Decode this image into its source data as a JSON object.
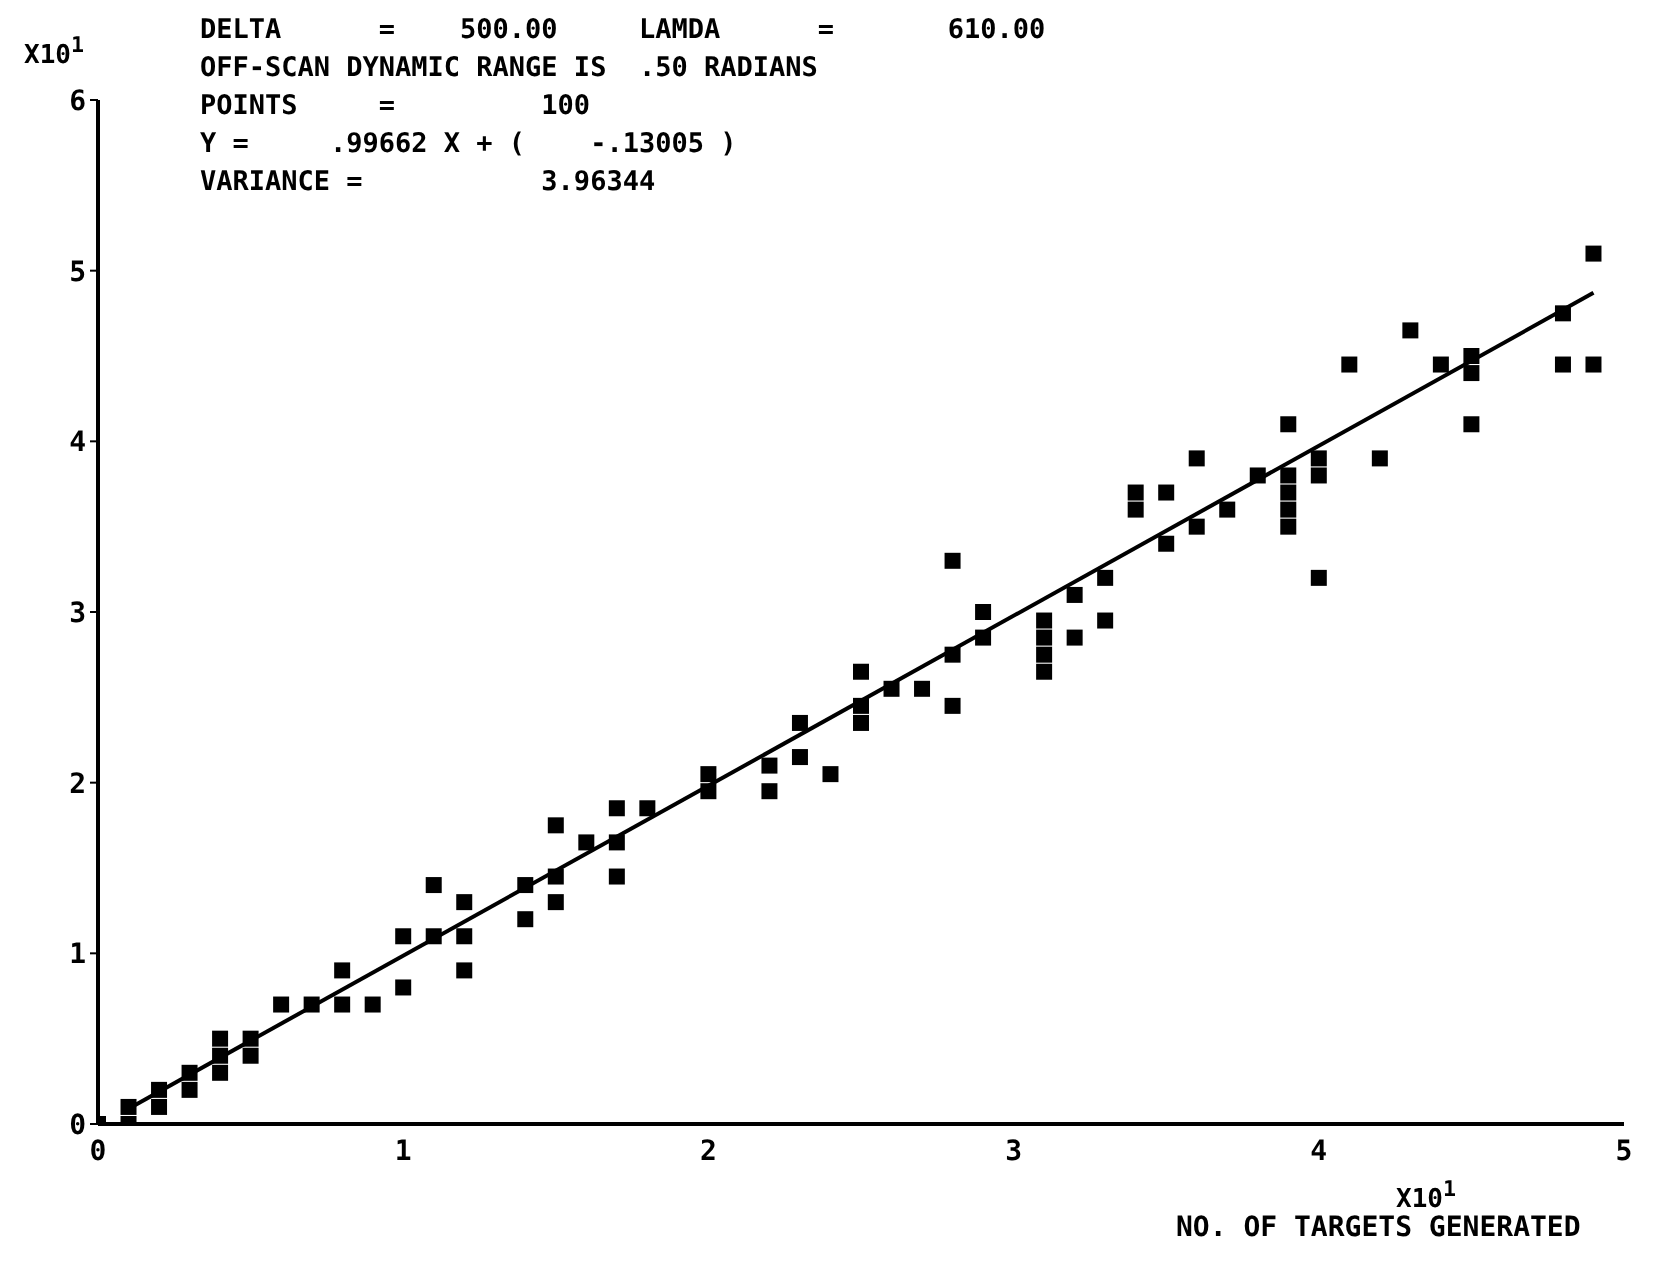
{
  "chart_data": {
    "type": "scatter",
    "xlabel": "NO. OF TARGETS GENERATED",
    "ylabel": "X10$^{1}$",
    "annotations": [
      "DELTA      =    500.00     LAMDA      =       610.00",
      "OFF-SCAN DYNAMIC RANGE IS  .50 RADIANS",
      "POINTS     =         100",
      "Y =     .99662 X + (    -.13005 )",
      "VARIANCE =           3.96344",
      "X10$^{1}$"
    ],
    "xlim": [
      0,
      5
    ],
    "xticks": [
      0,
      1,
      2,
      3,
      4,
      5
    ],
    "ylim": [
      0,
      6
    ],
    "yticks": [
      0,
      1,
      2,
      3,
      4,
      5,
      6
    ],
    "series": [
      {
        "color": "#000000",
        "marker": "square",
        "x": [
          0,
          0.1,
          0.1,
          0.2,
          0.2,
          0.3,
          0.3,
          0.4,
          0.4,
          0.4,
          0.5,
          0.5,
          0.6,
          0.7,
          0.8,
          0.8,
          0.9,
          1.0,
          1.0,
          1.1,
          1.1,
          1.2,
          1.2,
          1.2,
          1.4,
          1.4,
          1.5,
          1.5,
          1.5,
          1.6,
          1.7,
          1.7,
          1.7,
          1.8,
          2.0,
          2.0,
          2.2,
          2.2,
          2.3,
          2.3,
          2.4,
          2.5,
          2.5,
          2.5,
          2.6,
          2.7,
          2.8,
          2.8,
          2.8,
          2.9,
          2.9,
          3.1,
          3.1,
          3.1,
          3.1,
          3.2,
          3.2,
          3.3,
          3.3,
          3.4,
          3.4,
          3.5,
          3.5,
          3.6,
          3.6,
          3.7,
          3.8,
          3.9,
          3.9,
          3.9,
          3.9,
          3.9,
          4.0,
          4.0,
          4.0,
          4.1,
          4.2,
          4.3,
          4.4,
          4.5,
          4.5,
          4.5,
          4.8,
          4.8,
          4.9,
          4.9
        ],
        "values": [
          0,
          0.1,
          0,
          0.2,
          0.1,
          0.3,
          0.2,
          0.5,
          0.4,
          0.3,
          0.5,
          0.4,
          0.7,
          0.7,
          0.9,
          0.7,
          0.7,
          1.1,
          0.8,
          1.4,
          1.1,
          1.3,
          1.1,
          0.9,
          1.4,
          1.2,
          1.75,
          1.45,
          1.3,
          1.65,
          1.85,
          1.65,
          1.45,
          1.85,
          2.05,
          1.95,
          2.1,
          1.95,
          2.35,
          2.15,
          2.05,
          2.65,
          2.45,
          2.35,
          2.55,
          2.55,
          3.3,
          2.75,
          2.45,
          3.0,
          2.85,
          2.95,
          2.85,
          2.75,
          2.65,
          3.1,
          2.85,
          3.2,
          2.95,
          3.7,
          3.6,
          3.7,
          3.4,
          3.9,
          3.5,
          3.6,
          3.8,
          4.1,
          3.8,
          3.7,
          3.6,
          3.5,
          3.9,
          3.8,
          3.2,
          4.45,
          3.9,
          4.65,
          4.45,
          4.5,
          4.4,
          4.1,
          4.75,
          4.45,
          5.1,
          4.45
        ]
      },
      {
        "type": "line",
        "color": "#000000",
        "marker": "none",
        "line_style": "solid",
        "x": [
          0.1,
          4.9
        ],
        "values": [
          0.09,
          4.87
        ]
      }
    ]
  }
}
